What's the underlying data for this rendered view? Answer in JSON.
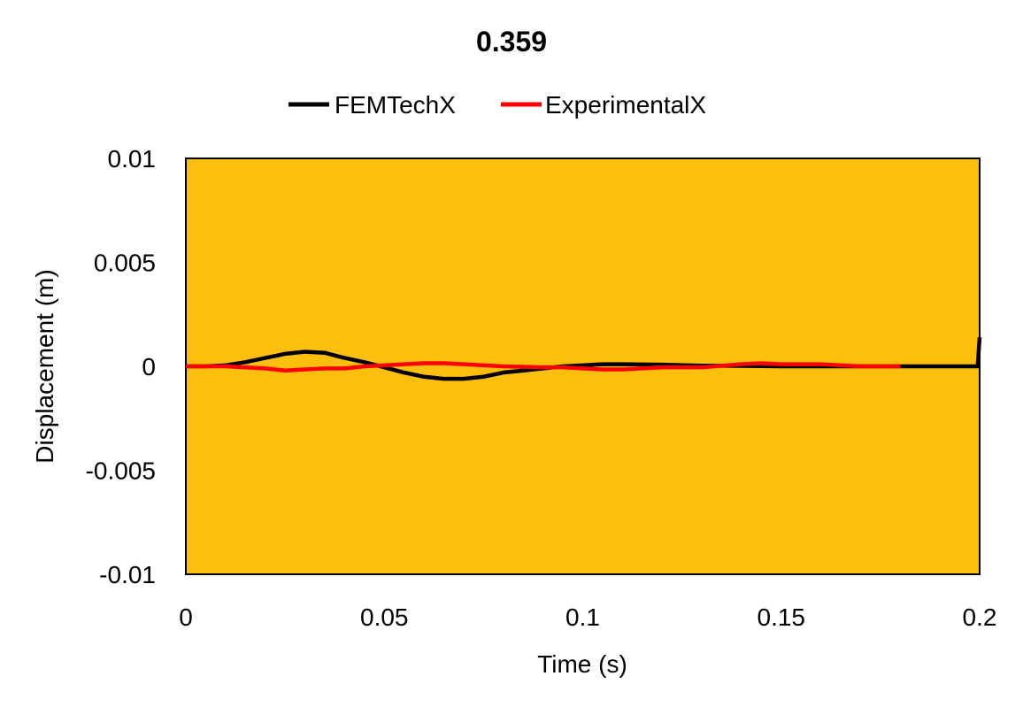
{
  "chart_data": {
    "type": "line",
    "title": "0.359",
    "xlabel": "Time (s)",
    "ylabel": "Displacement (m)",
    "xlim": [
      0,
      0.2
    ],
    "ylim": [
      -0.01,
      0.01
    ],
    "x_ticks": [
      "0",
      "0.05",
      "0.1",
      "0.15",
      "0.2"
    ],
    "y_ticks": [
      "0.01",
      "0.005",
      "0",
      "-0.005",
      "-0.01"
    ],
    "legend_position": "top",
    "plot_background": "#FDBF0E",
    "grid": false,
    "series": [
      {
        "name": "FEMTechX",
        "color": "#000000",
        "points": [
          [
            0,
            0
          ],
          [
            0.005,
            0
          ],
          [
            0.01,
            5e-05
          ],
          [
            0.015,
            0.0002
          ],
          [
            0.02,
            0.0004
          ],
          [
            0.025,
            0.0006
          ],
          [
            0.03,
            0.0007
          ],
          [
            0.035,
            0.00065
          ],
          [
            0.04,
            0.0004
          ],
          [
            0.045,
            0.0002
          ],
          [
            0.05,
            -5e-05
          ],
          [
            0.055,
            -0.0003
          ],
          [
            0.06,
            -0.0005
          ],
          [
            0.065,
            -0.0006
          ],
          [
            0.07,
            -0.0006
          ],
          [
            0.075,
            -0.0005
          ],
          [
            0.08,
            -0.0003
          ],
          [
            0.085,
            -0.0002
          ],
          [
            0.09,
            -0.0001
          ],
          [
            0.095,
            0
          ],
          [
            0.1,
            5e-05
          ],
          [
            0.105,
            0.0001
          ],
          [
            0.11,
            0.0001
          ],
          [
            0.12,
            8e-05
          ],
          [
            0.13,
            3e-05
          ],
          [
            0.14,
            2e-05
          ],
          [
            0.15,
            0
          ],
          [
            0.16,
            0
          ],
          [
            0.17,
            0
          ],
          [
            0.18,
            0
          ],
          [
            0.19,
            0
          ],
          [
            0.1995,
            0
          ],
          [
            0.2,
            0.0014
          ]
        ]
      },
      {
        "name": "ExperimentalX",
        "color": "#FF0000",
        "points": [
          [
            0,
            0
          ],
          [
            0.01,
            0
          ],
          [
            0.02,
            -0.0001
          ],
          [
            0.025,
            -0.0002
          ],
          [
            0.03,
            -0.00015
          ],
          [
            0.035,
            -0.0001
          ],
          [
            0.04,
            -0.0001
          ],
          [
            0.045,
            0
          ],
          [
            0.05,
            5e-05
          ],
          [
            0.055,
            0.0001
          ],
          [
            0.06,
            0.00015
          ],
          [
            0.065,
            0.00015
          ],
          [
            0.07,
            0.0001
          ],
          [
            0.075,
            5e-05
          ],
          [
            0.08,
            0
          ],
          [
            0.09,
            -5e-05
          ],
          [
            0.095,
            -5e-05
          ],
          [
            0.1,
            -0.0001
          ],
          [
            0.105,
            -0.00015
          ],
          [
            0.11,
            -0.00015
          ],
          [
            0.12,
            -5e-05
          ],
          [
            0.13,
            -5e-05
          ],
          [
            0.14,
            0.0001
          ],
          [
            0.145,
            0.00015
          ],
          [
            0.15,
            0.0001
          ],
          [
            0.16,
            0.0001
          ],
          [
            0.17,
            0
          ],
          [
            0.18,
            0
          ]
        ]
      }
    ]
  }
}
